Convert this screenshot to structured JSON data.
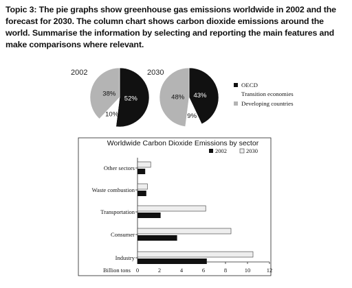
{
  "prompt": "Topic 3: The pie graphs show greenhouse gas emissions worldwide in 2002 and the forecast for 2030. The column chart shows carbon dioxide emissions around the world. Summarise the information by selecting and reporting the main features and make comparisons where relevant.",
  "colors": {
    "oecd": "#111111",
    "transition": "#ffffff",
    "developing": "#b4b4b4",
    "bar2002": "#111111",
    "bar2030": "#eeeeee"
  },
  "chart_data": [
    {
      "type": "pie",
      "title": "2002",
      "slices": [
        {
          "name": "OECD",
          "value": 52,
          "label": "52%"
        },
        {
          "name": "Developing countries",
          "value": 38,
          "label": "38%"
        },
        {
          "name": "Transition economies",
          "value": 10,
          "label": "10%"
        }
      ]
    },
    {
      "type": "pie",
      "title": "2030",
      "slices": [
        {
          "name": "OECD",
          "value": 43,
          "label": "43%"
        },
        {
          "name": "Developing countries",
          "value": 48,
          "label": "48%"
        },
        {
          "name": "Transition economies",
          "value": 9,
          "label": "9%"
        }
      ],
      "legend": [
        "OECD",
        "Transition economies",
        "Developing countries"
      ]
    },
    {
      "type": "bar",
      "orientation": "horizontal",
      "title": "Worldwide Carbon Dioxide Emissions by sector",
      "categories": [
        "Other sectors",
        "Waste combustion",
        "Transportation",
        "Consumer",
        "Industry"
      ],
      "series": [
        {
          "name": "2002",
          "values": [
            0.7,
            0.8,
            2.1,
            3.6,
            6.3
          ]
        },
        {
          "name": "2030",
          "values": [
            1.2,
            0.9,
            6.2,
            8.5,
            10.5
          ]
        }
      ],
      "xlabel": "Billion tons",
      "xlim": [
        0,
        12
      ],
      "xticks": [
        "0",
        "2",
        "4",
        "6",
        "8",
        "10",
        "12"
      ],
      "legend": "top-right"
    }
  ]
}
